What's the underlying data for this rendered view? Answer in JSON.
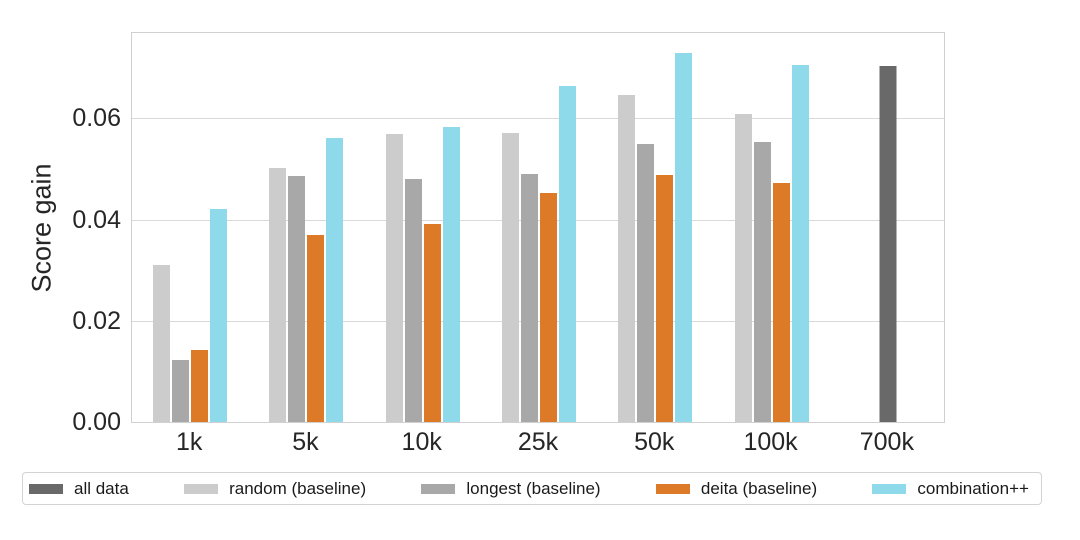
{
  "colors": {
    "grid": "#d9d9d9",
    "plot_border": "#d0d0d0",
    "tick_text": "#262626",
    "legend_text": "#1a1a1a"
  },
  "y_axis": {
    "label": "Score gain",
    "tick_labels": [
      "0.00",
      "0.02",
      "0.04",
      "0.06"
    ],
    "tick_values": [
      0.0,
      0.02,
      0.04,
      0.06
    ]
  },
  "chart_data": {
    "type": "bar",
    "title": "",
    "xlabel": "",
    "ylabel": "Score gain",
    "categories": [
      "1k",
      "5k",
      "10k",
      "25k",
      "50k",
      "100k",
      "700k"
    ],
    "ylim": [
      0,
      0.077
    ],
    "yticks": [
      0.0,
      0.02,
      0.04,
      0.06
    ],
    "grid": "horizontal",
    "legend_position": "bottom",
    "series": [
      {
        "name": "all data",
        "color": "#696969",
        "values": [
          null,
          null,
          null,
          null,
          null,
          null,
          0.0703
        ]
      },
      {
        "name": "random (baseline)",
        "color": "#cccccc",
        "values": [
          0.031,
          0.0502,
          0.0569,
          0.0571,
          0.0646,
          0.0608,
          null
        ]
      },
      {
        "name": "longest (baseline)",
        "color": "#a8a8a8",
        "values": [
          0.0123,
          0.0486,
          0.0481,
          0.0491,
          0.0549,
          0.0554,
          null
        ]
      },
      {
        "name": "deita (baseline)",
        "color": "#dc7a28",
        "values": [
          0.0143,
          0.037,
          0.0392,
          0.0453,
          0.0488,
          0.0473,
          null
        ]
      },
      {
        "name": "combination++",
        "color": "#8edaeb",
        "values": [
          0.0421,
          0.0562,
          0.0583,
          0.0665,
          0.073,
          0.0706,
          null
        ]
      }
    ]
  }
}
